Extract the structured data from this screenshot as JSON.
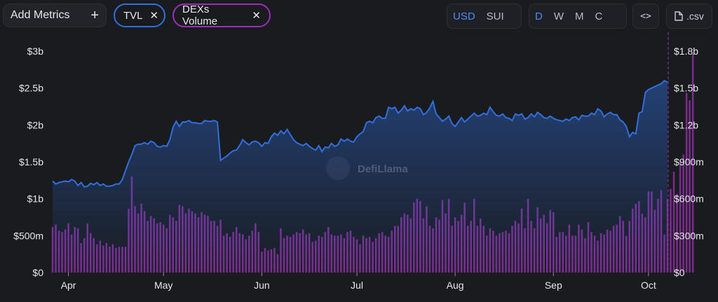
{
  "toolbar": {
    "add_metrics_label": "Add Metrics",
    "add_icon": "+",
    "metric_chips": [
      {
        "label": "TVL",
        "color": "#2f6fde"
      },
      {
        "label": "DEXs Volume",
        "color": "#9b2fb8"
      }
    ],
    "remove_icon": "✕",
    "currency_options": [
      "USD",
      "SUI"
    ],
    "currency_selected": "USD",
    "period_options": [
      "D",
      "W",
      "M",
      "C"
    ],
    "period_selected": "D",
    "embed_icon": "<>",
    "csv_label": ".csv"
  },
  "watermark": "DefiLlama",
  "chart_data": {
    "type": "line",
    "x_labels": [
      "Apr",
      "May",
      "Jun",
      "Jul",
      "Aug",
      "Sep",
      "Oct"
    ],
    "left_axis": {
      "ticks": [
        "$0",
        "$500m",
        "$1b",
        "$1.5b",
        "$2b",
        "$2.5b",
        "$3b"
      ],
      "min": 0,
      "max": 3000000000
    },
    "right_axis": {
      "ticks": [
        "$0",
        "$300m",
        "$600m",
        "$900m",
        "$1.2b",
        "$1.5b",
        "$1.8b"
      ],
      "min": 0,
      "max": 1800000000
    },
    "grid": false,
    "series": [
      {
        "name": "TVL",
        "type": "area",
        "axis": "left",
        "color": "#2f6fde",
        "unit": "b",
        "values": [
          1.24,
          1.2,
          1.22,
          1.23,
          1.24,
          1.23,
          1.26,
          1.24,
          1.18,
          1.22,
          1.16,
          1.17,
          1.21,
          1.19,
          1.22,
          1.18,
          1.2,
          1.17,
          1.17,
          1.18,
          1.2,
          1.2,
          1.26,
          1.38,
          1.5,
          1.6,
          1.72,
          1.74,
          1.74,
          1.76,
          1.74,
          1.78,
          1.76,
          1.71,
          1.7,
          1.72,
          1.71,
          1.8,
          1.97,
          2.05,
          1.98,
          2.04,
          2.04,
          2.06,
          2.03,
          2.03,
          2.02,
          2.02,
          2.06,
          2.05,
          2.05,
          2.06,
          2.04,
          1.52,
          1.55,
          1.58,
          1.62,
          1.65,
          1.66,
          1.72,
          1.8,
          1.76,
          1.73,
          1.77,
          1.78,
          1.76,
          1.71,
          1.76,
          1.75,
          1.84,
          1.89,
          1.86,
          1.92,
          1.88,
          1.94,
          1.87,
          1.8,
          1.76,
          1.74,
          1.72,
          1.75,
          1.71,
          1.68,
          1.66,
          1.72,
          1.64,
          1.7,
          1.69,
          1.75,
          1.71,
          1.73,
          1.81,
          1.78,
          1.81,
          1.78,
          1.77,
          1.84,
          1.88,
          1.91,
          2.03,
          2.05,
          2.03,
          2.1,
          2.12,
          2.09,
          2.09,
          2.24,
          2.22,
          2.24,
          2.16,
          2.2,
          2.26,
          2.19,
          2.22,
          2.2,
          2.24,
          2.22,
          2.14,
          2.17,
          2.23,
          2.32,
          2.15,
          2.1,
          2.05,
          2.08,
          2.12,
          2.02,
          1.98,
          2.04,
          2.1,
          2.04,
          2.08,
          2.12,
          2.16,
          2.12,
          2.13,
          2.16,
          2.14,
          2.24,
          2.18,
          2.13,
          2.12,
          2.15,
          2.1,
          2.09,
          2.06,
          2.15,
          2.13,
          2.15,
          2.08,
          2.1,
          2.15,
          2.11,
          2.17,
          2.14,
          2.1,
          2.09,
          2.12,
          2.09,
          2.07,
          2.06,
          2.05,
          2.08,
          2.06,
          2.1,
          2.11,
          2.07,
          2.13,
          2.12,
          2.12,
          2.16,
          2.14,
          2.22,
          2.19,
          2.11,
          2.15,
          2.17,
          2.14,
          2.14,
          2.07,
          2.04,
          1.98,
          1.84,
          1.9,
          1.88,
          2.16,
          2.18,
          2.44,
          2.48,
          2.5,
          2.52,
          2.54,
          2.56,
          2.6,
          2.58
        ]
      },
      {
        "name": "DEXs Volume",
        "type": "bar",
        "axis": "right",
        "color": "#7b2d8e",
        "unit": "m",
        "values": [
          370,
          390,
          340,
          330,
          350,
          400,
          310,
          370,
          360,
          240,
          280,
          400,
          320,
          280,
          230,
          260,
          220,
          240,
          210,
          230,
          200,
          210,
          210,
          210,
          520,
          780,
          540,
          480,
          560,
          500,
          420,
          460,
          440,
          400,
          410,
          390,
          360,
          470,
          450,
          420,
          550,
          540,
          480,
          520,
          500,
          480,
          450,
          490,
          470,
          460,
          420,
          420,
          380,
          430,
          300,
          320,
          290,
          330,
          370,
          320,
          310,
          270,
          300,
          340,
          400,
          330,
          170,
          200,
          180,
          190,
          200,
          150,
          360,
          280,
          300,
          290,
          310,
          330,
          320,
          350,
          310,
          320,
          250,
          260,
          300,
          290,
          330,
          370,
          310,
          300,
          300,
          310,
          280,
          330,
          340,
          290,
          270,
          230,
          300,
          280,
          290,
          250,
          280,
          320,
          330,
          300,
          290,
          340,
          380,
          380,
          450,
          480,
          470,
          440,
          570,
          600,
          580,
          440,
          540,
          380,
          360,
          450,
          430,
          590,
          480,
          600,
          380,
          450,
          420,
          470,
          570,
          380,
          420,
          600,
          380,
          440,
          380,
          300,
          360,
          340,
          300,
          320,
          330,
          340,
          320,
          380,
          420,
          400,
          520,
          360,
          600,
          420,
          360,
          530,
          440,
          470,
          400,
          510,
          490,
          290,
          330,
          330,
          300,
          390,
          300,
          300,
          390,
          350,
          280,
          410,
          330,
          300,
          260,
          320,
          310,
          350,
          340,
          380,
          390,
          460,
          420,
          300,
          420,
          520,
          560,
          580,
          480,
          450,
          660,
          660,
          510,
          600,
          670,
          310,
          600,
          680,
          820,
          640,
          900,
          960,
          1460,
          1400,
          1780
        ]
      }
    ]
  }
}
